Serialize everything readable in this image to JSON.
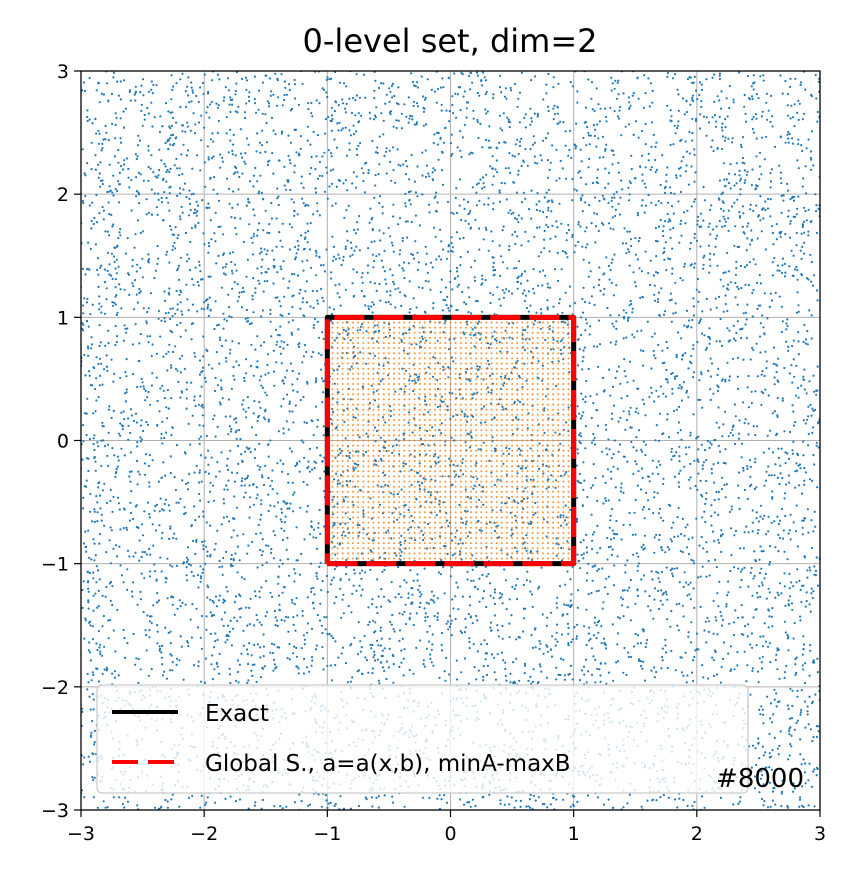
{
  "chart_data": {
    "type": "scatter",
    "title": "0-level set, dim=2",
    "xlabel": "",
    "ylabel": "",
    "xlim": [
      -3,
      3
    ],
    "ylim": [
      -3,
      3
    ],
    "xticks": [
      -3,
      -2,
      -1,
      0,
      1,
      2,
      3
    ],
    "yticks": [
      -3,
      -2,
      -1,
      0,
      1,
      2,
      3
    ],
    "xtick_labels": [
      "−3",
      "−2",
      "−1",
      "0",
      "1",
      "2",
      "3"
    ],
    "ytick_labels": [
      "−3",
      "−2",
      "−1",
      "0",
      "1",
      "2",
      "3"
    ],
    "grid": true,
    "series": [
      {
        "kind": "scatter",
        "color": "#1f77b4",
        "sample_count": 8000,
        "distribution": "uniform on [-3,3] x [-3,3]"
      },
      {
        "kind": "scatter",
        "color": "#ff7f0e",
        "distribution": "regular grid inside [-1,1] x [-1,1]"
      },
      {
        "name": "Exact",
        "kind": "line",
        "color": "#000000",
        "style": "solid",
        "x": [
          -1,
          1,
          1,
          -1,
          -1
        ],
        "y": [
          -1,
          -1,
          1,
          1,
          -1
        ]
      },
      {
        "name": "Global S., a=a(x,b), minA-maxB",
        "kind": "line",
        "color": "#ff0000",
        "style": "dashed",
        "x": [
          -1,
          1,
          1,
          -1,
          -1
        ],
        "y": [
          -1,
          -1,
          1,
          1,
          -1
        ]
      }
    ],
    "legend": {
      "placement": "lower-left",
      "entries": [
        "Exact",
        "Global S., a=a(x,b), minA-maxB"
      ]
    },
    "annotation": "#8000"
  }
}
